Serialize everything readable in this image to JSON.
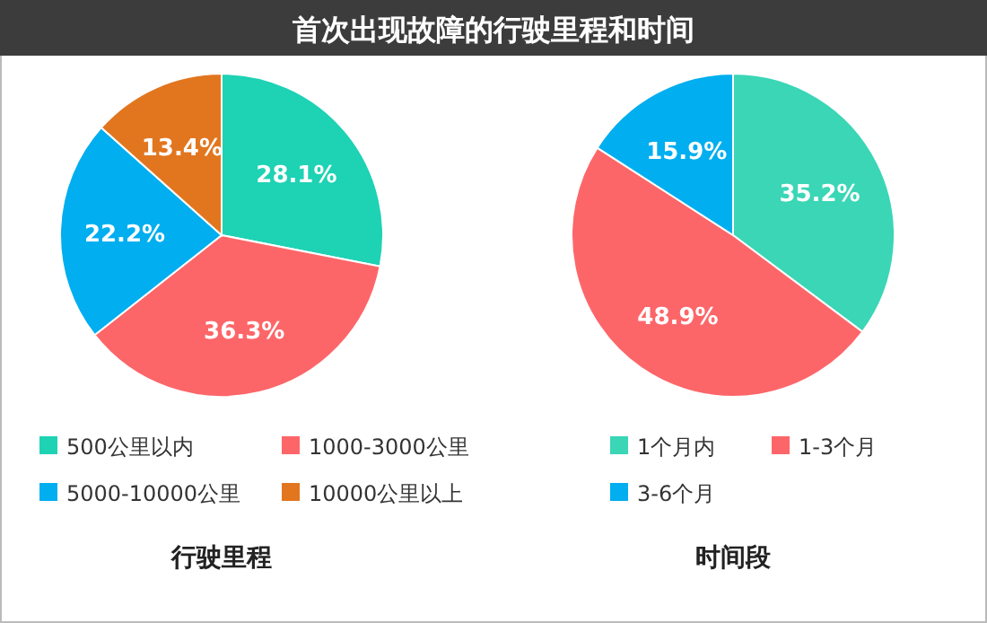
{
  "chart_data": [
    {
      "type": "pie",
      "title": "首次出现故障的行驶里程和时间",
      "xlabel": "行驶里程",
      "categories": [
        "500公里以内",
        "1000-3000公里",
        "5000-10000公里",
        "10000公里以上"
      ],
      "values": [
        28.1,
        36.3,
        22.2,
        13.4
      ],
      "value_labels": [
        "28.1%",
        "36.3%",
        "22.2%",
        "13.4%"
      ],
      "colors": [
        "#1ed2b4",
        "#fd6669",
        "#01aeef",
        "#e2761f"
      ],
      "legend": "bottom"
    },
    {
      "type": "pie",
      "xlabel": "时间段",
      "categories": [
        "1个月内",
        "1-3个月",
        "3-6个月"
      ],
      "values": [
        35.2,
        48.9,
        15.9
      ],
      "value_labels": [
        "35.2%",
        "48.9%",
        "15.9%"
      ],
      "colors": [
        "#3ad6b6",
        "#fd6669",
        "#01aeef"
      ],
      "legend": "bottom"
    }
  ]
}
